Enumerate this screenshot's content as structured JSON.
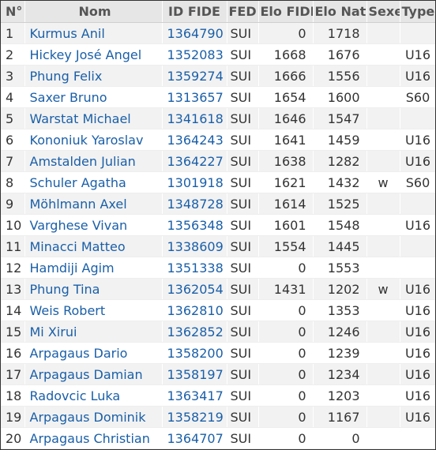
{
  "colors": {
    "link": "#1a5fa8",
    "header_bg": "#e6e6e6",
    "row_alt": "#f2f2f2"
  },
  "columns": [
    "N°",
    "Nom",
    "ID FIDE",
    "FED",
    "Elo FIDE",
    "Elo Nat.",
    "Sexe",
    "Type"
  ],
  "rows": [
    {
      "no": "1",
      "name": "Kurmus Anil",
      "fide_id": "1364790",
      "fed": "SUI",
      "elo_fide": "0",
      "elo_nat": "1718",
      "sex": "",
      "type": ""
    },
    {
      "no": "2",
      "name": "Hickey José Angel",
      "fide_id": "1352083",
      "fed": "SUI",
      "elo_fide": "1668",
      "elo_nat": "1676",
      "sex": "",
      "type": "U16"
    },
    {
      "no": "3",
      "name": "Phung Felix",
      "fide_id": "1359274",
      "fed": "SUI",
      "elo_fide": "1666",
      "elo_nat": "1556",
      "sex": "",
      "type": "U16"
    },
    {
      "no": "4",
      "name": "Saxer Bruno",
      "fide_id": "1313657",
      "fed": "SUI",
      "elo_fide": "1654",
      "elo_nat": "1600",
      "sex": "",
      "type": "S60"
    },
    {
      "no": "5",
      "name": "Warstat Michael",
      "fide_id": "1341618",
      "fed": "SUI",
      "elo_fide": "1646",
      "elo_nat": "1547",
      "sex": "",
      "type": ""
    },
    {
      "no": "6",
      "name": "Kononiuk Yaroslav",
      "fide_id": "1364243",
      "fed": "SUI",
      "elo_fide": "1641",
      "elo_nat": "1459",
      "sex": "",
      "type": "U16"
    },
    {
      "no": "7",
      "name": "Amstalden Julian",
      "fide_id": "1364227",
      "fed": "SUI",
      "elo_fide": "1638",
      "elo_nat": "1282",
      "sex": "",
      "type": "U16"
    },
    {
      "no": "8",
      "name": "Schuler Agatha",
      "fide_id": "1301918",
      "fed": "SUI",
      "elo_fide": "1621",
      "elo_nat": "1432",
      "sex": "w",
      "type": "S60"
    },
    {
      "no": "9",
      "name": "Möhlmann Axel",
      "fide_id": "1348728",
      "fed": "SUI",
      "elo_fide": "1614",
      "elo_nat": "1525",
      "sex": "",
      "type": ""
    },
    {
      "no": "10",
      "name": "Varghese Vivan",
      "fide_id": "1356348",
      "fed": "SUI",
      "elo_fide": "1601",
      "elo_nat": "1548",
      "sex": "",
      "type": "U16"
    },
    {
      "no": "11",
      "name": "Minacci Matteo",
      "fide_id": "1338609",
      "fed": "SUI",
      "elo_fide": "1554",
      "elo_nat": "1445",
      "sex": "",
      "type": ""
    },
    {
      "no": "12",
      "name": "Hamdiji Agim",
      "fide_id": "1351338",
      "fed": "SUI",
      "elo_fide": "0",
      "elo_nat": "1553",
      "sex": "",
      "type": ""
    },
    {
      "no": "13",
      "name": "Phung Tina",
      "fide_id": "1362054",
      "fed": "SUI",
      "elo_fide": "1431",
      "elo_nat": "1202",
      "sex": "w",
      "type": "U16"
    },
    {
      "no": "14",
      "name": "Weis Robert",
      "fide_id": "1362810",
      "fed": "SUI",
      "elo_fide": "0",
      "elo_nat": "1353",
      "sex": "",
      "type": "U16"
    },
    {
      "no": "15",
      "name": "Mi Xirui",
      "fide_id": "1362852",
      "fed": "SUI",
      "elo_fide": "0",
      "elo_nat": "1246",
      "sex": "",
      "type": "U16"
    },
    {
      "no": "16",
      "name": "Arpagaus Dario",
      "fide_id": "1358200",
      "fed": "SUI",
      "elo_fide": "0",
      "elo_nat": "1239",
      "sex": "",
      "type": "U16"
    },
    {
      "no": "17",
      "name": "Arpagaus Damian",
      "fide_id": "1358197",
      "fed": "SUI",
      "elo_fide": "0",
      "elo_nat": "1234",
      "sex": "",
      "type": "U16"
    },
    {
      "no": "18",
      "name": "Radovcic Luka",
      "fide_id": "1363417",
      "fed": "SUI",
      "elo_fide": "0",
      "elo_nat": "1203",
      "sex": "",
      "type": "U16"
    },
    {
      "no": "19",
      "name": "Arpagaus Dominik",
      "fide_id": "1358219",
      "fed": "SUI",
      "elo_fide": "0",
      "elo_nat": "1167",
      "sex": "",
      "type": "U16"
    },
    {
      "no": "20",
      "name": "Arpagaus Christian",
      "fide_id": "1364707",
      "fed": "SUI",
      "elo_fide": "0",
      "elo_nat": "0",
      "sex": "",
      "type": ""
    }
  ]
}
